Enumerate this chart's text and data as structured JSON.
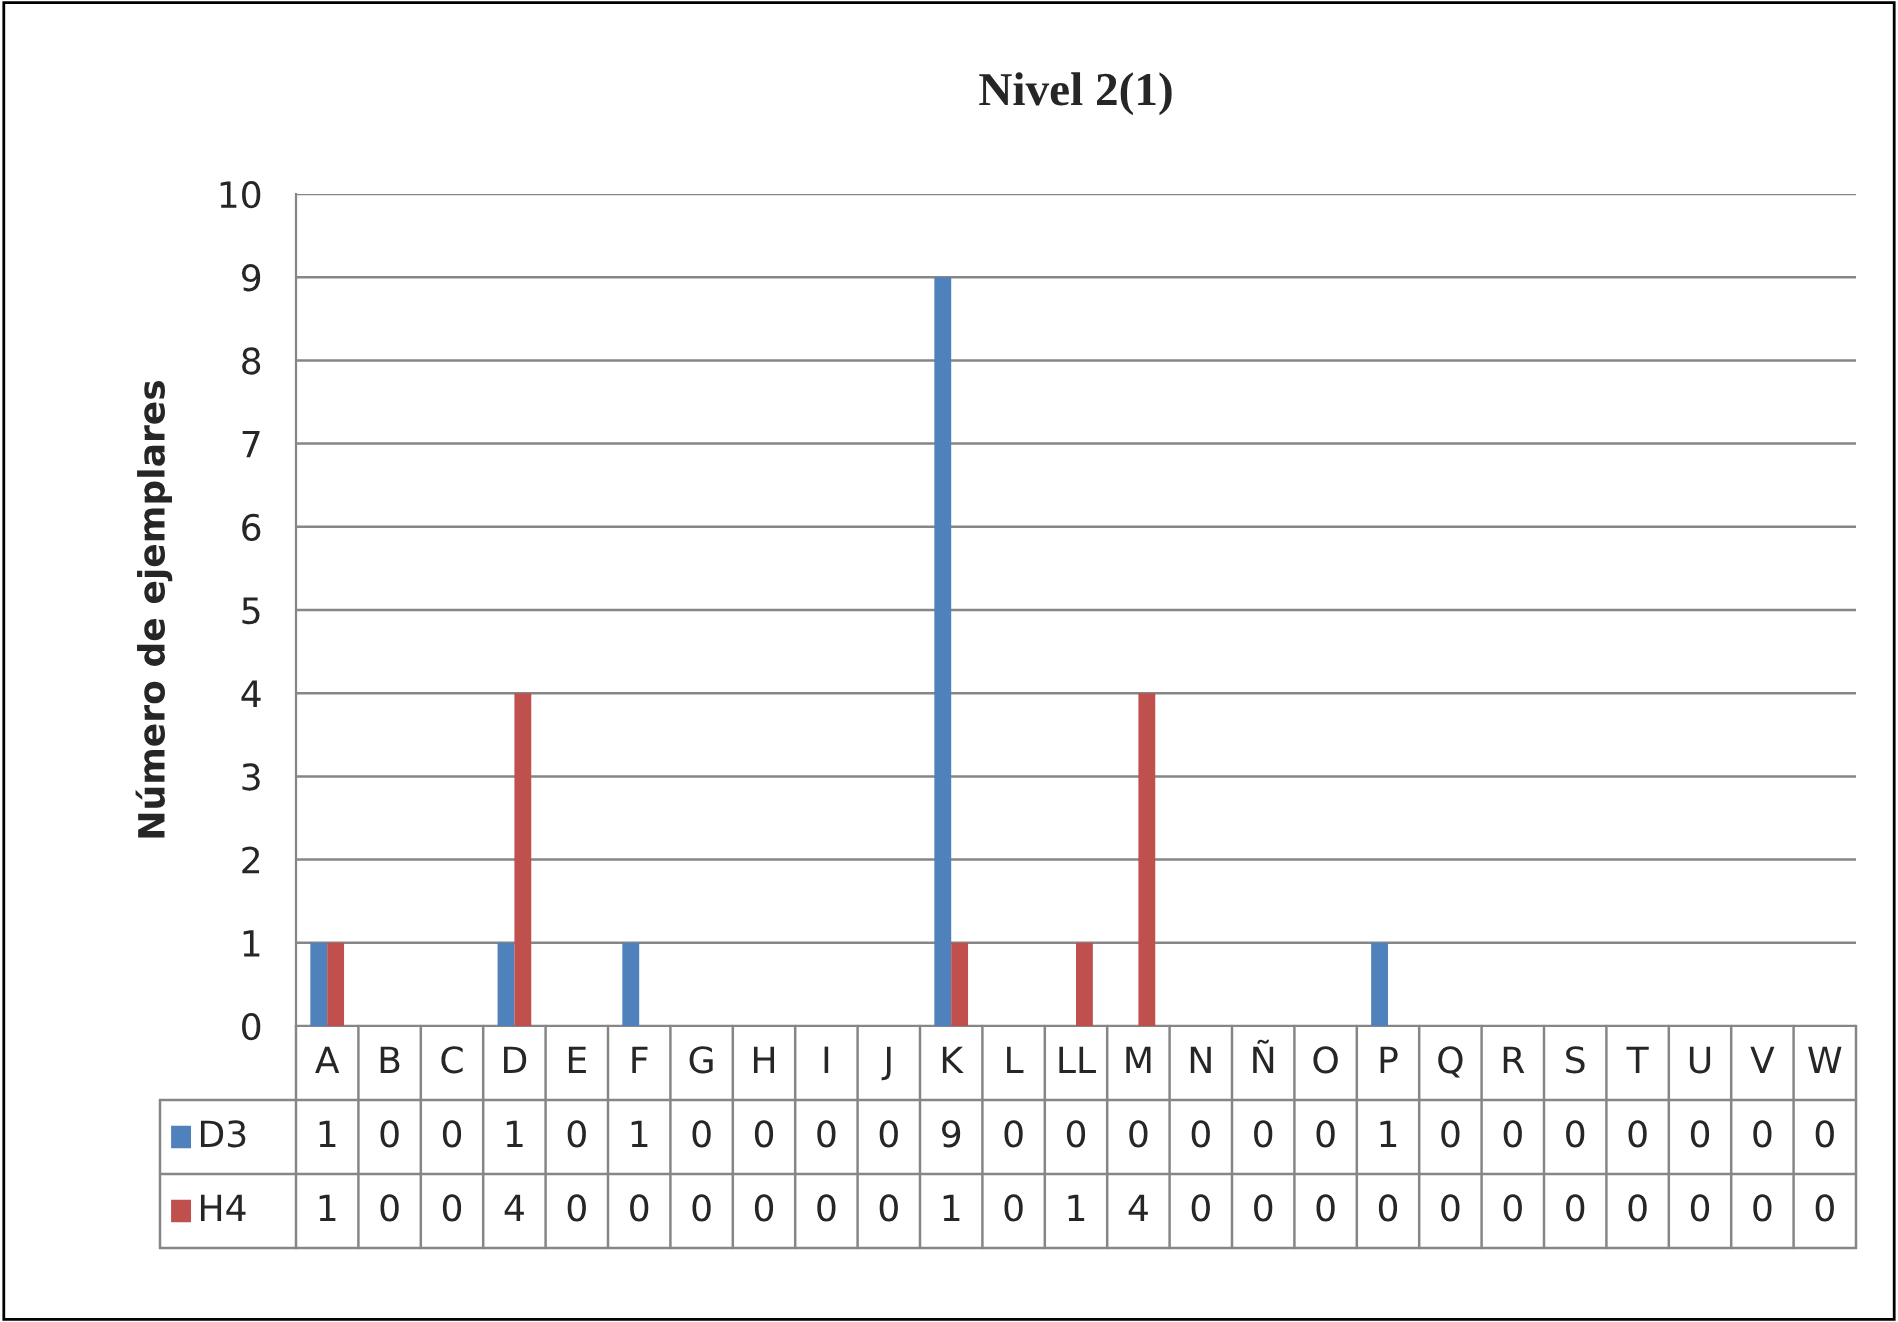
{
  "chart_data": {
    "type": "bar",
    "title": "Nivel 2(1)",
    "ylabel": "Número de ejemplares",
    "categories": [
      "A",
      "B",
      "C",
      "D",
      "E",
      "F",
      "G",
      "H",
      "I",
      "J",
      "K",
      "L",
      "LL",
      "M",
      "N",
      "Ñ",
      "O",
      "P",
      "Q",
      "R",
      "S",
      "T",
      "U",
      "V",
      "W"
    ],
    "series": [
      {
        "name": "D3",
        "color": "#4f81bd",
        "values": [
          1,
          0,
          0,
          1,
          0,
          1,
          0,
          0,
          0,
          0,
          9,
          0,
          0,
          0,
          0,
          0,
          0,
          1,
          0,
          0,
          0,
          0,
          0,
          0,
          0
        ]
      },
      {
        "name": "H4",
        "color": "#c0504d",
        "values": [
          1,
          0,
          0,
          4,
          0,
          0,
          0,
          0,
          0,
          0,
          1,
          0,
          1,
          4,
          0,
          0,
          0,
          0,
          0,
          0,
          0,
          0,
          0,
          0,
          0
        ]
      }
    ],
    "ylim": [
      0,
      10
    ],
    "yticks": [
      0,
      1,
      2,
      3,
      4,
      5,
      6,
      7,
      8,
      9,
      10
    ],
    "grid": "y",
    "data_labels": true,
    "legend": "bottom"
  }
}
